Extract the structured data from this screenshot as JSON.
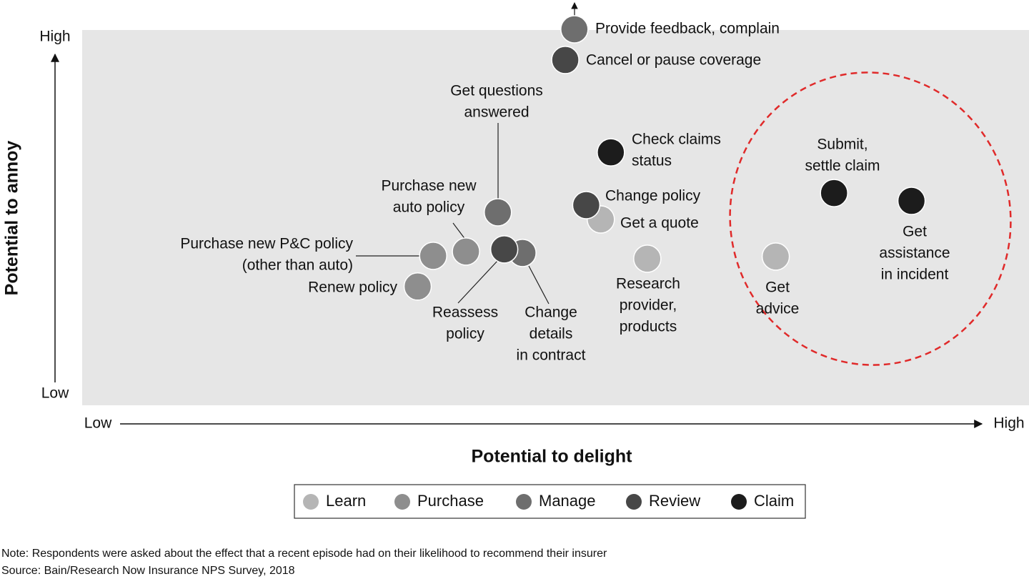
{
  "chart_data": {
    "type": "scatter",
    "x_label": "Potential to delight",
    "y_label": "Potential to annoy",
    "xlim": [
      0,
      100
    ],
    "ylim": [
      0,
      100
    ],
    "xticks": [
      {
        "value": 0,
        "label": "Low"
      },
      {
        "value": 100,
        "label": "High"
      }
    ],
    "yticks": [
      {
        "value": 0,
        "label": "Low"
      },
      {
        "value": 100,
        "label": "High"
      }
    ],
    "series": [
      {
        "name": "Learn",
        "color": "#b5b5b5",
        "x": [
          55.2,
          60.3,
          74.4
        ],
        "y": [
          48.9,
          37.9,
          38.5
        ],
        "labels": [
          [
            "Get a quote"
          ],
          [
            "Research",
            "provider,",
            "products"
          ],
          [
            "Get",
            "advice"
          ]
        ]
      },
      {
        "name": "Purchase",
        "color": "#8e8e8e",
        "x": [
          36.8,
          40.4,
          35.1
        ],
        "y": [
          38.7,
          39.9,
          30.1
        ],
        "labels": [
          [
            "Purchase new P&C policy",
            "(other than auto)"
          ],
          [
            "Purchase new",
            "auto policy"
          ],
          [
            "Renew policy"
          ]
        ]
      },
      {
        "name": "Manage",
        "color": "#6e6e6e",
        "x": [
          52.3,
          43.9,
          46.6
        ],
        "y": [
          102.2,
          50.9,
          39.5
        ],
        "labels": [
          [
            "Provide feedback, complain"
          ],
          [
            "Get questions",
            "answered"
          ],
          [
            "Change",
            "details",
            "in contract"
          ]
        ]
      },
      {
        "name": "Review",
        "color": "#474747",
        "x": [
          51.3,
          44.6,
          53.6
        ],
        "y": [
          93.6,
          40.5,
          52.9
        ],
        "labels": [
          [
            "Cancel or pause coverage"
          ],
          [
            "Reassess",
            "policy"
          ],
          [
            "Change policy"
          ]
        ]
      },
      {
        "name": "Claim",
        "color": "#1c1c1c",
        "x": [
          56.3,
          80.8,
          89.3
        ],
        "y": [
          67.7,
          56.3,
          54.1
        ],
        "labels": [
          [
            "Check claims",
            "status"
          ],
          [
            "Submit,",
            "settle claim"
          ],
          [
            "Get",
            "assistance",
            "in incident"
          ]
        ]
      }
    ],
    "notes": [
      "Note: Respondents were asked about the effect that a recent episode had on their likelihood to recommend their insurer",
      "Source: Bain/Research Now Insurance NPS Survey, 2018"
    ]
  }
}
